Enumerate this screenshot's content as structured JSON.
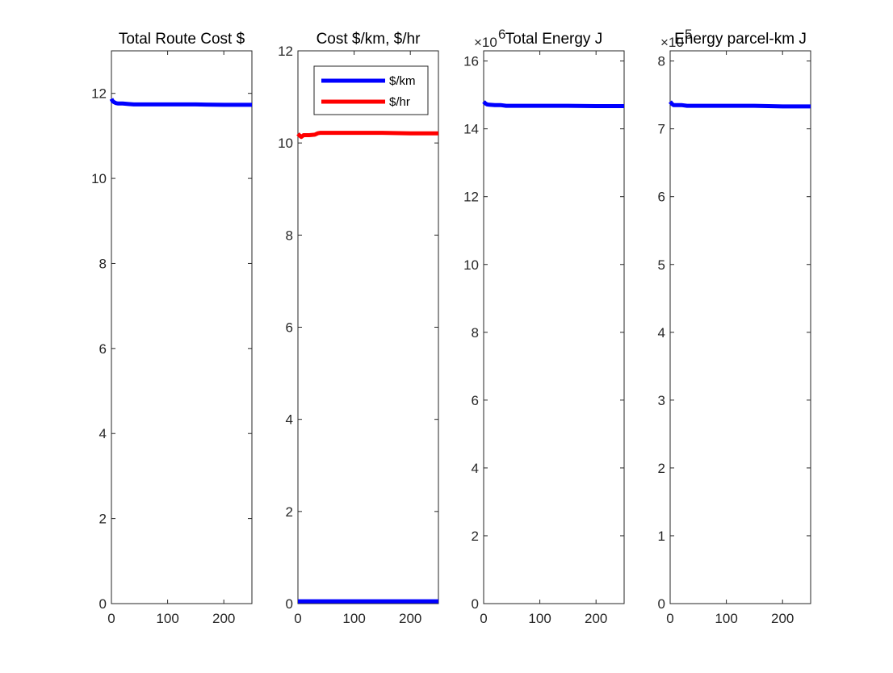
{
  "chart_data": [
    {
      "type": "line",
      "title": "Total Route Cost $",
      "xlim": [
        0,
        250
      ],
      "ylim": [
        0,
        13
      ],
      "xticks": [
        "0",
        "100",
        "200"
      ],
      "yticks": [
        "0",
        "2",
        "4",
        "6",
        "8",
        "10",
        "12"
      ],
      "y_exponent": "",
      "series": [
        {
          "color": "#0000ff",
          "x": [
            0,
            2,
            5,
            8,
            12,
            20,
            30,
            40,
            60,
            100,
            150,
            200,
            250
          ],
          "y": [
            11.87,
            11.82,
            11.79,
            11.77,
            11.76,
            11.76,
            11.75,
            11.74,
            11.74,
            11.74,
            11.74,
            11.73,
            11.73
          ]
        }
      ]
    },
    {
      "type": "line",
      "title": "Cost $/km, $/hr",
      "xlim": [
        0,
        250
      ],
      "ylim": [
        0,
        12
      ],
      "xticks": [
        "0",
        "100",
        "200"
      ],
      "yticks": [
        "0",
        "2",
        "4",
        "6",
        "8",
        "10",
        "12"
      ],
      "y_exponent": "",
      "legend": {
        "position": "top-right",
        "entries": [
          "$/km",
          "$/hr"
        ]
      },
      "series": [
        {
          "name": "$/km",
          "color": "#0000ff",
          "x": [
            0,
            50,
            100,
            150,
            200,
            250
          ],
          "y": [
            0.05,
            0.05,
            0.05,
            0.05,
            0.05,
            0.05
          ]
        },
        {
          "name": "$/hr",
          "color": "#ff0000",
          "x": [
            0,
            3,
            6,
            10,
            15,
            20,
            30,
            35,
            40,
            60,
            100,
            150,
            200,
            250
          ],
          "y": [
            10.2,
            10.16,
            10.13,
            10.17,
            10.17,
            10.17,
            10.18,
            10.21,
            10.22,
            10.22,
            10.22,
            10.22,
            10.21,
            10.21
          ]
        }
      ]
    },
    {
      "type": "line",
      "title": "Total Energy J",
      "xlim": [
        0,
        250
      ],
      "ylim": [
        0,
        16.3
      ],
      "xticks": [
        "0",
        "100",
        "200"
      ],
      "yticks": [
        "0",
        "2",
        "4",
        "6",
        "8",
        "10",
        "12",
        "14",
        "16"
      ],
      "y_exponent": "6",
      "series": [
        {
          "color": "#0000ff",
          "x": [
            0,
            3,
            6,
            10,
            20,
            30,
            40,
            60,
            100,
            150,
            200,
            250
          ],
          "y": [
            14.8,
            14.75,
            14.72,
            14.71,
            14.7,
            14.7,
            14.68,
            14.68,
            14.68,
            14.68,
            14.67,
            14.67
          ]
        }
      ]
    },
    {
      "type": "line",
      "title": "Energy parcel-km J",
      "xlim": [
        0,
        250
      ],
      "ylim": [
        0,
        8.15
      ],
      "xticks": [
        "0",
        "100",
        "200"
      ],
      "yticks": [
        "0",
        "1",
        "2",
        "3",
        "4",
        "5",
        "6",
        "7",
        "8"
      ],
      "y_exponent": "5",
      "series": [
        {
          "color": "#0000ff",
          "x": [
            0,
            3,
            6,
            10,
            20,
            30,
            40,
            60,
            100,
            150,
            200,
            250
          ],
          "y": [
            7.4,
            7.37,
            7.35,
            7.35,
            7.35,
            7.34,
            7.34,
            7.34,
            7.34,
            7.34,
            7.33,
            7.33
          ]
        }
      ]
    }
  ]
}
